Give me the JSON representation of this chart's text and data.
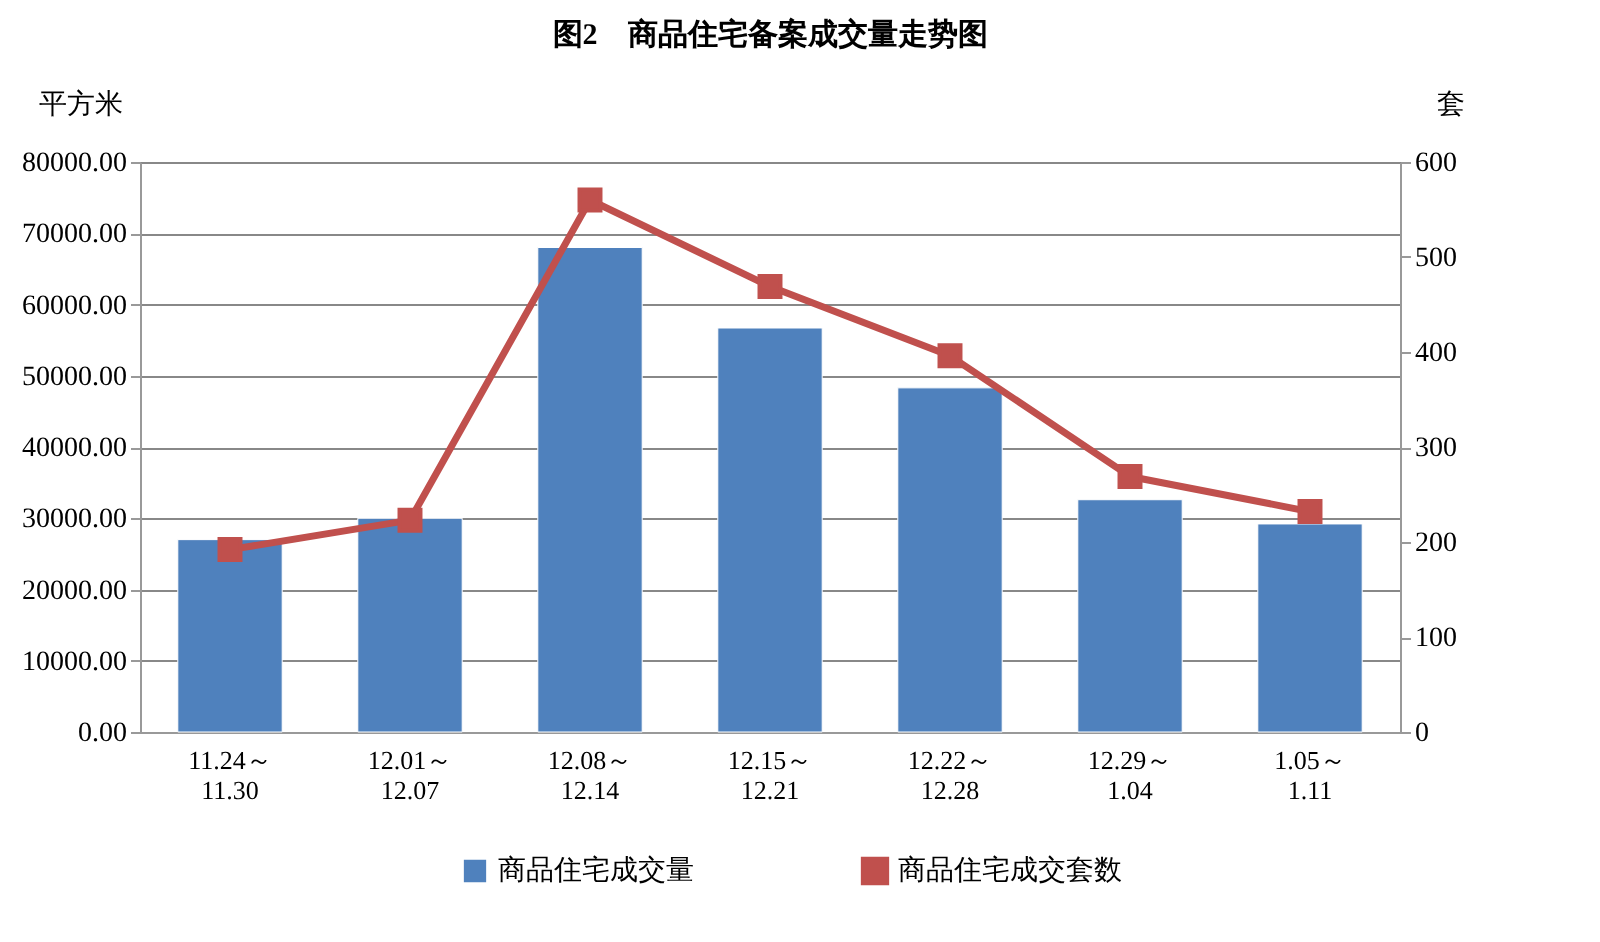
{
  "chart_data": {
    "type": "bar",
    "title": "图2　商品住宅备案成交量走势图",
    "ylabel": "平方米",
    "y2label": "套",
    "categories": [
      "11.24～11.30",
      "12.01～12.07",
      "12.08～12.14",
      "12.15～12.21",
      "12.22～12.28",
      "12.29～1.04",
      "1.05～1.11"
    ],
    "series": [
      {
        "name": "商品住宅成交量",
        "color": "#4f81bd",
        "values": [
          27000,
          30000,
          68000,
          56700,
          48300,
          32600,
          29200
        ]
      },
      {
        "name": "商品住宅成交套数",
        "type": "line",
        "axis": "y2",
        "color": "#c0504d",
        "marker": "square",
        "values": [
          192,
          223,
          560,
          469,
          396,
          269,
          232
        ]
      }
    ],
    "ylim": [
      0,
      80000
    ],
    "yticks": [
      {
        "value": 0,
        "label": "0.00"
      },
      {
        "value": 10000,
        "label": "10000.00"
      },
      {
        "value": 20000,
        "label": "20000.00"
      },
      {
        "value": 30000,
        "label": "30000.00"
      },
      {
        "value": 40000,
        "label": "40000.00"
      },
      {
        "value": 50000,
        "label": "50000.00"
      },
      {
        "value": 60000,
        "label": "60000.00"
      },
      {
        "value": 70000,
        "label": "70000.00"
      },
      {
        "value": 80000,
        "label": "80000.00"
      }
    ],
    "y2lim": [
      0,
      600
    ],
    "y2ticks": [
      0,
      100,
      200,
      300,
      400,
      500,
      600
    ],
    "grid": "y",
    "legend": "bottom"
  }
}
